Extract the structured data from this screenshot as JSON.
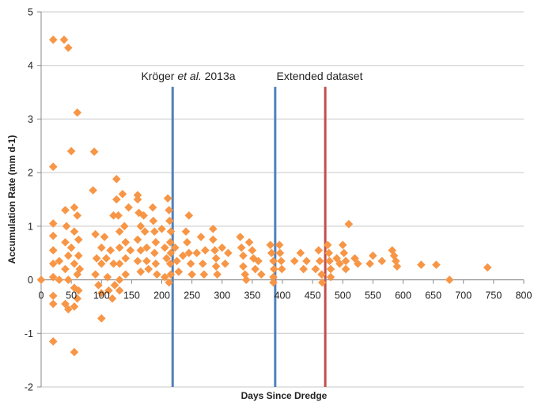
{
  "chart_data": {
    "type": "scatter",
    "title": "",
    "xlabel": "Days Since Dredge",
    "ylabel": "Accumulation Rate (mm d-1)",
    "xlim": [
      0,
      800
    ],
    "ylim": [
      -2,
      5
    ],
    "xticks": [
      0,
      50,
      100,
      150,
      200,
      250,
      300,
      350,
      400,
      450,
      500,
      550,
      600,
      650,
      700,
      750,
      800
    ],
    "yticks": [
      -2,
      -1,
      0,
      1,
      2,
      3,
      4,
      5
    ],
    "grid": "horizontal",
    "marker_color": "#F79646",
    "annotation_prefix": "Kröger ",
    "annotation_italic": "et al.",
    "annotation_suffix": " 2013a",
    "annotation_extended": "Extended dataset",
    "vertical_lines": [
      {
        "x": 218,
        "color": "#4F81BD"
      },
      {
        "x": 388,
        "color": "#4F81BD"
      },
      {
        "x": 471,
        "color": "#C0504D"
      }
    ],
    "points": [
      [
        0,
        0
      ],
      [
        20,
        4.48
      ],
      [
        38,
        4.48
      ],
      [
        45,
        4.33
      ],
      [
        60,
        3.12
      ],
      [
        50,
        2.4
      ],
      [
        88,
        2.39
      ],
      [
        20,
        2.11
      ],
      [
        86,
        1.67
      ],
      [
        20,
        1.05
      ],
      [
        20,
        0.82
      ],
      [
        20,
        0.55
      ],
      [
        20,
        0.3
      ],
      [
        20,
        0.05
      ],
      [
        20,
        -0.3
      ],
      [
        20,
        -0.45
      ],
      [
        20,
        -1.15
      ],
      [
        40,
        1.3
      ],
      [
        42,
        1.0
      ],
      [
        40,
        0.7
      ],
      [
        45,
        0.45
      ],
      [
        40,
        0.2
      ],
      [
        45,
        0.0
      ],
      [
        40,
        -0.45
      ],
      [
        45,
        -0.55
      ],
      [
        55,
        1.35
      ],
      [
        60,
        1.2
      ],
      [
        55,
        0.9
      ],
      [
        50,
        0.6
      ],
      [
        55,
        0.3
      ],
      [
        60,
        0.1
      ],
      [
        55,
        -0.15
      ],
      [
        60,
        -0.35
      ],
      [
        55,
        -0.5
      ],
      [
        55,
        -1.35
      ],
      [
        62,
        0.75
      ],
      [
        62,
        0.45
      ],
      [
        64,
        0.2
      ],
      [
        62,
        -0.2
      ],
      [
        30,
        0.0
      ],
      [
        30,
        0.35
      ],
      [
        90,
        0.85
      ],
      [
        92,
        0.4
      ],
      [
        90,
        0.1
      ],
      [
        95,
        -0.1
      ],
      [
        100,
        0.6
      ],
      [
        100,
        0.3
      ],
      [
        100,
        -0.25
      ],
      [
        100,
        -0.72
      ],
      [
        105,
        0.8
      ],
      [
        108,
        0.4
      ],
      [
        110,
        0.05
      ],
      [
        112,
        -0.2
      ],
      [
        115,
        0.55
      ],
      [
        118,
        -0.35
      ],
      [
        120,
        1.2
      ],
      [
        120,
        0.3
      ],
      [
        122,
        -0.1
      ],
      [
        125,
        1.88
      ],
      [
        125,
        1.5
      ],
      [
        128,
        1.2
      ],
      [
        130,
        0.9
      ],
      [
        130,
        0.6
      ],
      [
        130,
        0.3
      ],
      [
        130,
        0.0
      ],
      [
        130,
        -0.2
      ],
      [
        135,
        1.6
      ],
      [
        138,
        1.0
      ],
      [
        140,
        0.7
      ],
      [
        140,
        0.4
      ],
      [
        140,
        0.1
      ],
      [
        145,
        1.35
      ],
      [
        148,
        0.55
      ],
      [
        160,
        1.58
      ],
      [
        160,
        1.5
      ],
      [
        162,
        1.25
      ],
      [
        165,
        1.0
      ],
      [
        160,
        0.75
      ],
      [
        165,
        0.55
      ],
      [
        160,
        0.35
      ],
      [
        165,
        0.15
      ],
      [
        170,
        1.2
      ],
      [
        172,
        0.9
      ],
      [
        175,
        0.6
      ],
      [
        175,
        0.35
      ],
      [
        178,
        0.2
      ],
      [
        185,
        1.35
      ],
      [
        186,
        1.1
      ],
      [
        188,
        0.9
      ],
      [
        190,
        0.7
      ],
      [
        188,
        0.5
      ],
      [
        190,
        0.3
      ],
      [
        192,
        0.1
      ],
      [
        200,
        0.95
      ],
      [
        205,
        0.6
      ],
      [
        208,
        0.4
      ],
      [
        205,
        0.05
      ],
      [
        210,
        1.52
      ],
      [
        212,
        1.3
      ],
      [
        213,
        1.1
      ],
      [
        215,
        0.9
      ],
      [
        214,
        0.7
      ],
      [
        215,
        0.5
      ],
      [
        214,
        0.3
      ],
      [
        215,
        0.1
      ],
      [
        212,
        -0.05
      ],
      [
        222,
        0.6
      ],
      [
        225,
        0.35
      ],
      [
        228,
        0.15
      ],
      [
        235,
        0.45
      ],
      [
        240,
        0.9
      ],
      [
        242,
        0.7
      ],
      [
        245,
        1.2
      ],
      [
        245,
        0.5
      ],
      [
        248,
        0.3
      ],
      [
        250,
        0.1
      ],
      [
        258,
        0.5
      ],
      [
        265,
        0.8
      ],
      [
        268,
        0.3
      ],
      [
        270,
        0.1
      ],
      [
        272,
        0.55
      ],
      [
        285,
        0.95
      ],
      [
        285,
        0.75
      ],
      [
        288,
        0.55
      ],
      [
        290,
        0.4
      ],
      [
        290,
        0.25
      ],
      [
        292,
        0.1
      ],
      [
        300,
        0.6
      ],
      [
        305,
        0.3
      ],
      [
        310,
        0.5
      ],
      [
        330,
        0.8
      ],
      [
        332,
        0.6
      ],
      [
        335,
        0.45
      ],
      [
        335,
        0.25
      ],
      [
        338,
        0.1
      ],
      [
        340,
        0.0
      ],
      [
        345,
        0.7
      ],
      [
        350,
        0.55
      ],
      [
        352,
        0.4
      ],
      [
        355,
        0.2
      ],
      [
        360,
        0.35
      ],
      [
        365,
        0.1
      ],
      [
        380,
        0.65
      ],
      [
        382,
        0.5
      ],
      [
        385,
        0.35
      ],
      [
        386,
        0.2
      ],
      [
        385,
        0.05
      ],
      [
        385,
        -0.05
      ],
      [
        395,
        0.65
      ],
      [
        396,
        0.5
      ],
      [
        398,
        0.35
      ],
      [
        399,
        0.2
      ],
      [
        420,
        0.35
      ],
      [
        430,
        0.5
      ],
      [
        435,
        0.2
      ],
      [
        440,
        0.35
      ],
      [
        455,
        0.2
      ],
      [
        460,
        0.55
      ],
      [
        462,
        0.35
      ],
      [
        465,
        0.1
      ],
      [
        466,
        -0.05
      ],
      [
        475,
        0.65
      ],
      [
        477,
        0.5
      ],
      [
        478,
        0.35
      ],
      [
        480,
        0.2
      ],
      [
        480,
        0.05
      ],
      [
        490,
        0.4
      ],
      [
        495,
        0.3
      ],
      [
        500,
        0.65
      ],
      [
        502,
        0.5
      ],
      [
        505,
        0.35
      ],
      [
        505,
        0.2
      ],
      [
        510,
        1.04
      ],
      [
        520,
        0.4
      ],
      [
        525,
        0.3
      ],
      [
        545,
        0.3
      ],
      [
        550,
        0.45
      ],
      [
        565,
        0.35
      ],
      [
        582,
        0.55
      ],
      [
        585,
        0.45
      ],
      [
        588,
        0.35
      ],
      [
        590,
        0.25
      ],
      [
        630,
        0.28
      ],
      [
        655,
        0.28
      ],
      [
        677,
        0.0
      ],
      [
        740,
        0.23
      ]
    ]
  }
}
